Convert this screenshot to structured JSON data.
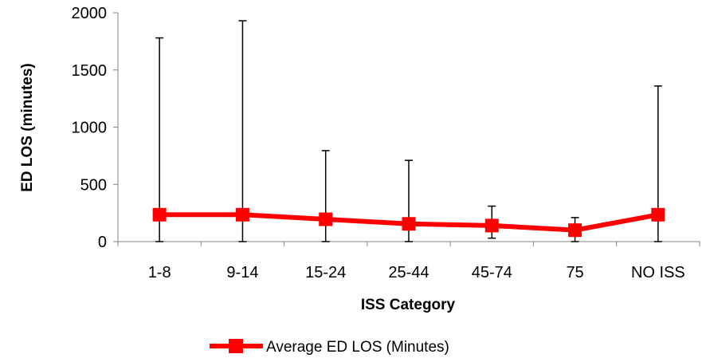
{
  "chart_data": {
    "type": "line",
    "xlabel": "ISS Category",
    "ylabel": "ED LOS (minutes)",
    "ylim": [
      0,
      2000
    ],
    "yticks": [
      0,
      500,
      1000,
      1500,
      2000
    ],
    "categories": [
      "1-8",
      "9-14",
      "15-24",
      "25-44",
      "45-74",
      "75",
      "NO ISS"
    ],
    "series": [
      {
        "name": "Average ED LOS (Minutes)",
        "color": "#ff0000",
        "marker": "square",
        "values": [
          235,
          235,
          195,
          155,
          140,
          100,
          235
        ],
        "error_low": [
          0,
          0,
          0,
          0,
          30,
          0,
          0
        ],
        "error_high": [
          1780,
          1930,
          795,
          710,
          310,
          210,
          1360
        ]
      }
    ],
    "legend": {
      "position": "bottom"
    },
    "grid": false
  }
}
